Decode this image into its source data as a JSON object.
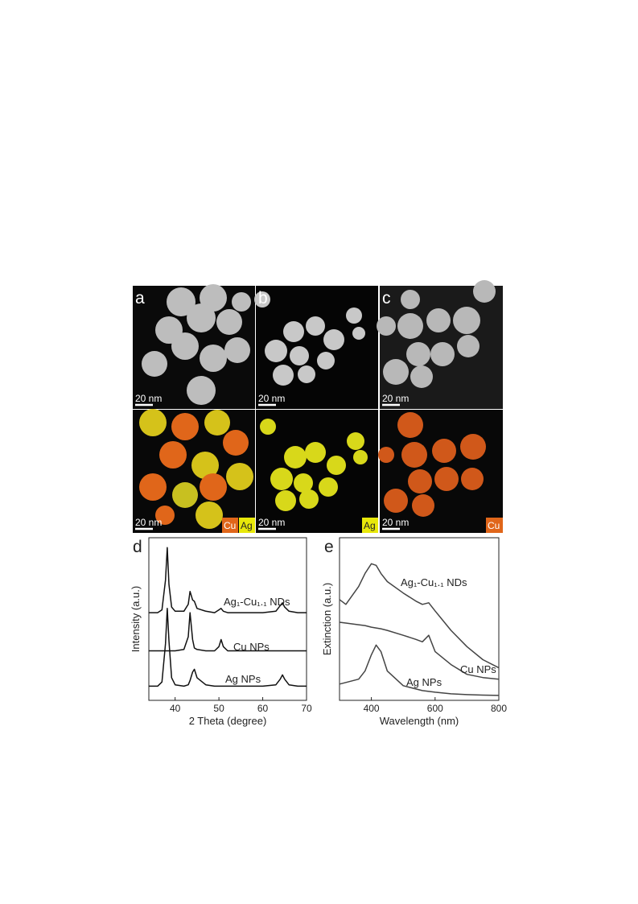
{
  "panels": [
    {
      "label": "a",
      "scale_top": "20 nm",
      "scale_bottom": "20 nm",
      "legend": [
        "Cu",
        "Ag"
      ]
    },
    {
      "label": "b",
      "scale_top": "20 nm",
      "scale_bottom": "20 nm",
      "legend": [
        "Ag"
      ]
    },
    {
      "label": "c",
      "scale_top": "20 nm",
      "scale_bottom": "20 nm",
      "legend": [
        "Cu"
      ]
    }
  ],
  "chart_data": [
    {
      "type": "line",
      "label": "d",
      "xlabel": "2 Theta (degree)",
      "ylabel": "Intensity (a.u.)",
      "x": [
        34,
        36,
        37,
        37.8,
        38.2,
        38.6,
        39.2,
        40,
        42,
        43,
        43.4,
        44,
        44.4,
        45,
        47,
        49,
        50,
        50.5,
        51,
        52,
        55,
        60,
        63,
        64,
        64.5,
        65,
        66,
        68,
        70
      ],
      "xlim": [
        34,
        70
      ],
      "xticks": [
        40,
        50,
        60,
        70
      ],
      "ylim": [
        0,
        11.5
      ],
      "series": [
        {
          "name": "Ag₁-Cu₁.₁ NDs",
          "color": "#111111",
          "values": [
            6.2,
            6.2,
            6.4,
            8.5,
            10.8,
            8.2,
            6.6,
            6.3,
            6.3,
            6.8,
            7.7,
            7.1,
            7.0,
            6.5,
            6.3,
            6.2,
            6.4,
            6.5,
            6.3,
            6.2,
            6.2,
            6.2,
            6.3,
            6.7,
            6.9,
            6.6,
            6.3,
            6.2,
            6.2
          ]
        },
        {
          "name": "Cu NPs",
          "color": "#111111",
          "values": [
            3.5,
            3.5,
            3.5,
            3.5,
            3.5,
            3.5,
            3.5,
            3.5,
            3.6,
            4.5,
            6.2,
            4.3,
            3.7,
            3.6,
            3.5,
            3.5,
            3.8,
            4.3,
            3.8,
            3.5,
            3.5,
            3.5,
            3.5,
            3.5,
            3.5,
            3.5,
            3.5,
            3.5,
            3.5
          ]
        },
        {
          "name": "Ag NPs",
          "color": "#111111",
          "values": [
            1.0,
            1.0,
            1.3,
            4.0,
            6.5,
            4.2,
            1.6,
            1.1,
            1.0,
            1.1,
            1.4,
            2.0,
            2.2,
            1.6,
            1.1,
            1.0,
            1.0,
            1.0,
            1.0,
            1.0,
            1.0,
            1.0,
            1.1,
            1.5,
            1.8,
            1.5,
            1.1,
            1.0,
            1.0
          ]
        }
      ]
    },
    {
      "type": "line",
      "label": "e",
      "xlabel": "Wavelength (nm)",
      "ylabel": "Extinction (a.u.)",
      "x": [
        300,
        320,
        360,
        380,
        400,
        415,
        430,
        450,
        500,
        540,
        560,
        580,
        600,
        650,
        700,
        750,
        800
      ],
      "xlim": [
        300,
        800
      ],
      "xticks": [
        400,
        600,
        800
      ],
      "ylim": [
        0,
        10
      ],
      "series": [
        {
          "name": "Ag₁-Cu₁.₁ NDs",
          "color": "#444444",
          "values": [
            6.2,
            5.9,
            7.0,
            7.8,
            8.4,
            8.3,
            7.8,
            7.3,
            6.6,
            6.1,
            5.9,
            6.0,
            5.5,
            4.3,
            3.3,
            2.5,
            2.0
          ]
        },
        {
          "name": "Cu NPs",
          "color": "#444444",
          "values": [
            4.8,
            4.75,
            4.65,
            4.6,
            4.5,
            4.45,
            4.4,
            4.3,
            4.0,
            3.75,
            3.6,
            4.0,
            3.0,
            2.2,
            1.6,
            1.4,
            1.3
          ]
        },
        {
          "name": "Ag NPs",
          "color": "#444444",
          "values": [
            1.0,
            1.1,
            1.3,
            1.8,
            2.8,
            3.4,
            3.0,
            1.8,
            0.9,
            0.7,
            0.6,
            0.55,
            0.5,
            0.4,
            0.35,
            0.32,
            0.3
          ]
        }
      ]
    }
  ]
}
